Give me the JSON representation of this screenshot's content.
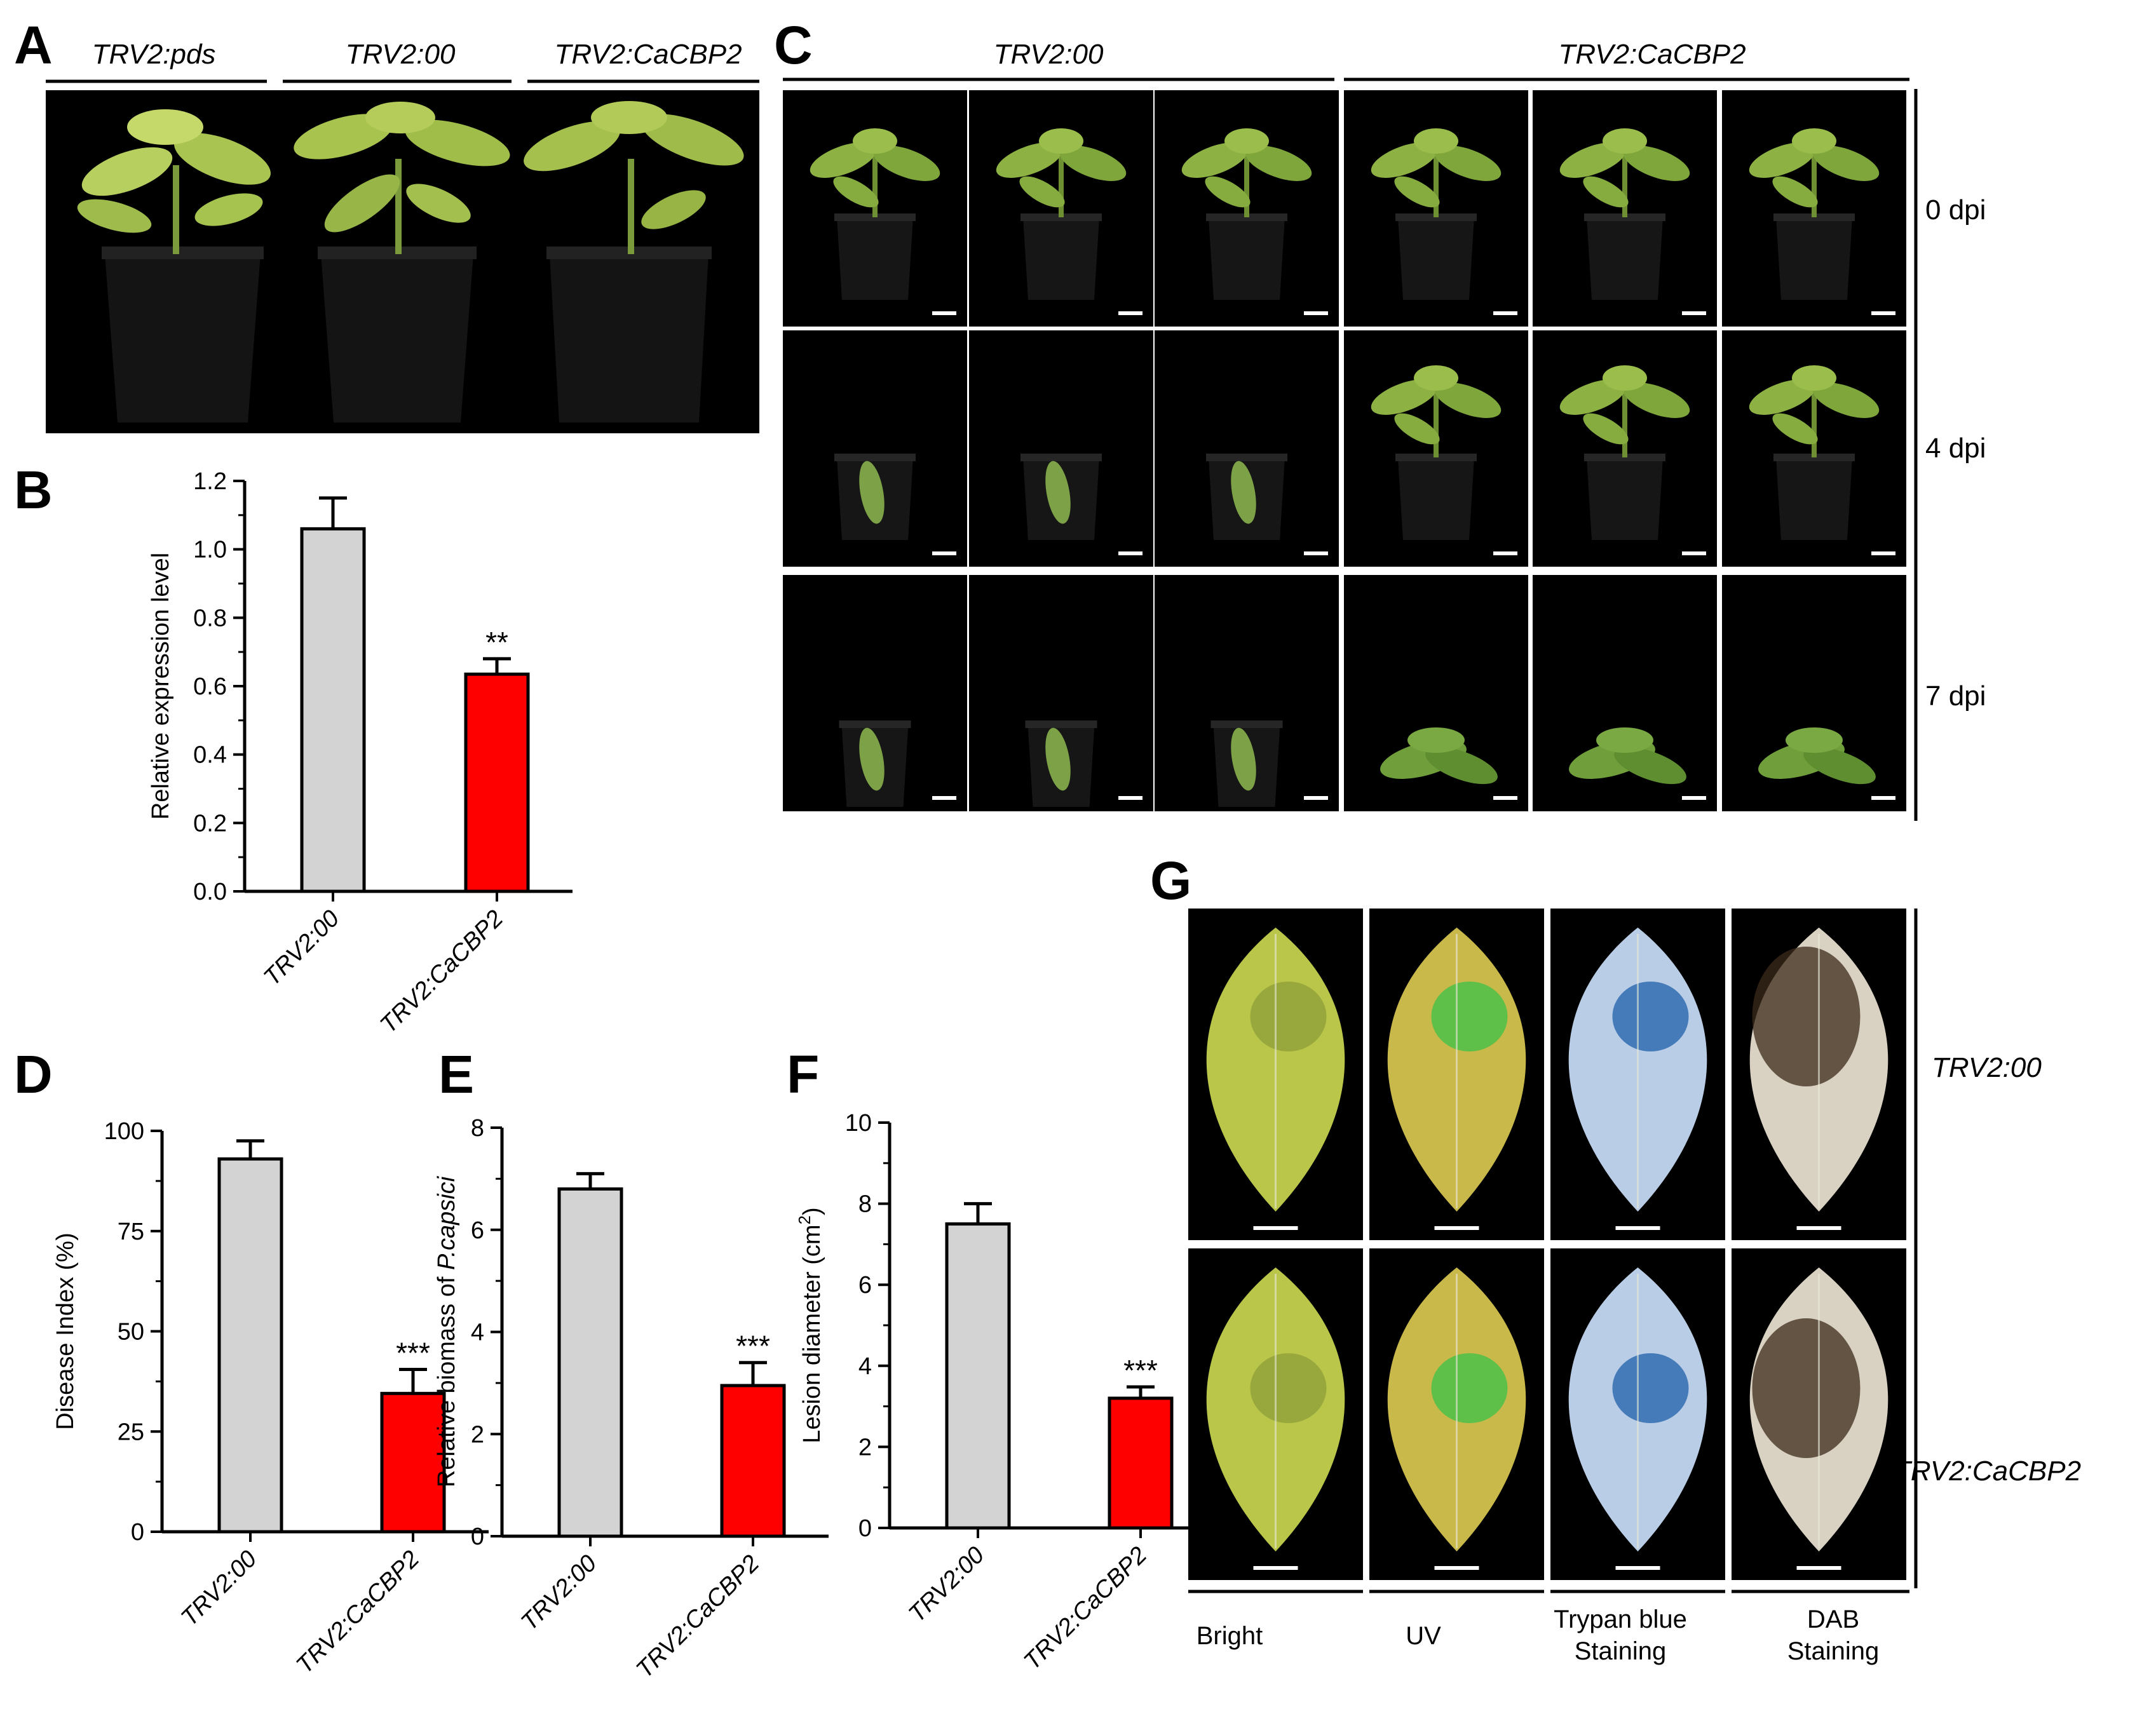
{
  "panels": {
    "A": {
      "letter": "A",
      "labels": [
        "TRV2:pds",
        "TRV2:00",
        "TRV2:CaCBP2"
      ]
    },
    "C": {
      "letter": "C",
      "groups": [
        "TRV2:00",
        "TRV2:CaCBP2"
      ],
      "rows": [
        "0 dpi",
        "4 dpi",
        "7 dpi"
      ]
    },
    "G": {
      "letter": "G",
      "rows": [
        "TRV2:00",
        "TRV2:CaCBP2"
      ],
      "columns": [
        {
          "line1": "Bright",
          "line2": ""
        },
        {
          "line1": "UV",
          "line2": ""
        },
        {
          "line1": "Trypan blue",
          "line2": "Staining"
        },
        {
          "line1": "DAB",
          "line2": "Staining"
        }
      ]
    }
  },
  "colors": {
    "control_bar": "#d3d3d3",
    "treatment_bar": "#ff0000",
    "photo_bg": "#000000"
  },
  "chart_data": [
    {
      "id": "B",
      "letter": "B",
      "type": "bar",
      "categories": [
        "TRV2:00",
        "TRV2:CaCBP2"
      ],
      "values": [
        1.06,
        0.635
      ],
      "errors": [
        0.09,
        0.045
      ],
      "significance": [
        "",
        "**"
      ],
      "ylabel": "Relative expression level",
      "ylim": [
        0,
        1.2
      ],
      "yticks": [
        "0.0",
        "0.2",
        "0.4",
        "0.6",
        "0.8",
        "1.0",
        "1.2"
      ]
    },
    {
      "id": "D",
      "letter": "D",
      "type": "bar",
      "categories": [
        "TRV2:00",
        "TRV2:CaCBP2"
      ],
      "values": [
        93,
        34.5
      ],
      "errors": [
        4.5,
        6
      ],
      "significance": [
        "",
        "***"
      ],
      "ylabel": "Disease Index (%)",
      "ylim": [
        0,
        100
      ],
      "yticks": [
        "0",
        "25",
        "50",
        "75",
        "100"
      ]
    },
    {
      "id": "E",
      "letter": "E",
      "type": "bar",
      "categories": [
        "TRV2:00",
        "TRV2:CaCBP2"
      ],
      "values": [
        6.8,
        2.95
      ],
      "errors": [
        0.3,
        0.45
      ],
      "significance": [
        "",
        "***"
      ],
      "ylabel_prefix": "Relative biomass of ",
      "ylabel_italic": "P.capsici",
      "ylim": [
        0,
        8
      ],
      "yticks": [
        "0",
        "2",
        "4",
        "6",
        "8"
      ]
    },
    {
      "id": "F",
      "letter": "F",
      "type": "bar",
      "categories": [
        "TRV2:00",
        "TRV2:CaCBP2"
      ],
      "values": [
        7.5,
        3.2
      ],
      "errors": [
        0.5,
        0.28
      ],
      "significance": [
        "",
        "***"
      ],
      "ylabel_prefix": "Lesion diameter (cm",
      "ylabel_sup": "2",
      "ylabel_suffix": ")",
      "ylim": [
        0,
        10
      ],
      "yticks": [
        "0",
        "2",
        "4",
        "6",
        "8",
        "10"
      ]
    }
  ]
}
